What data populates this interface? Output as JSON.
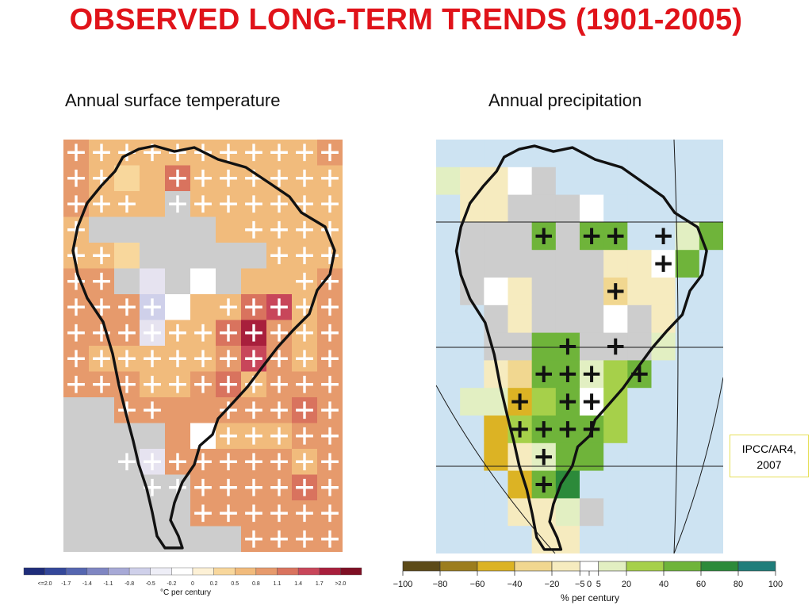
{
  "title": "OBSERVED LONG-TERM TRENDS (1901-2005)",
  "colors": {
    "title": "#e0131a",
    "land_grey": "#cdcdcd",
    "ocean": "#cde3f2",
    "coast": "#111111",
    "grid": "#1a1a1a"
  },
  "panels": {
    "temperature": {
      "subtitle": "Annual surface temperature",
      "colorbar": {
        "ticks": [
          "<=2.0",
          "-1.7",
          "-1.4",
          "-1.1",
          "-0.8",
          "-0.5",
          "-0.2",
          "0",
          "0.2",
          "0.5",
          "0.8",
          "1.1",
          "1.4",
          "1.7",
          ">2.0"
        ],
        "unit_label": "°C per century",
        "colors": [
          "#1f2d7a",
          "#34489a",
          "#5566b0",
          "#7f86c2",
          "#a7a9d6",
          "#cfd0ea",
          "#eeeef7",
          "#ffffff",
          "#fdf1d6",
          "#f8d79c",
          "#f1bb7c",
          "#e69a6c",
          "#d9735e",
          "#c8465a",
          "#a81f3c",
          "#7e0f24"
        ]
      }
    },
    "precipitation": {
      "subtitle": "Annual precipitation",
      "colorbar": {
        "ticks": [
          "−100",
          "−80",
          "−60",
          "−40",
          "−20",
          "−5",
          "0",
          "5",
          "20",
          "40",
          "60",
          "80",
          "100"
        ],
        "unit_label": "% per century",
        "colors": [
          "#5c4a18",
          "#9c7d1e",
          "#dcb324",
          "#f1d790",
          "#f6ebbf",
          "#ffffff",
          "#e2efc2",
          "#a6d04a",
          "#6fb43a",
          "#2c8a3a",
          "#1f7d7a"
        ]
      }
    }
  },
  "source_label": "IPCC/AR4,\n2007"
}
